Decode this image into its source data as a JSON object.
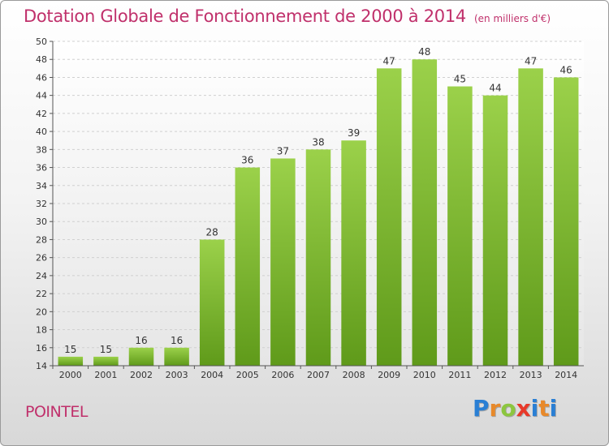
{
  "header": {
    "title": "Dotation Globale de Fonctionnement de 2000 à 2014",
    "subtitle": "(en milliers d'€)"
  },
  "footer": {
    "commune": "POINTEL",
    "logo_letters": [
      "P",
      "r",
      "o",
      "x",
      "i",
      "t",
      "i"
    ],
    "logo_colors": [
      "#2a7fd4",
      "#e8892a",
      "#8cc63f",
      "#e8392a",
      "#2a7fd4",
      "#e8892a",
      "#2a7fd4"
    ]
  },
  "colors": {
    "bar": "#8cc63f",
    "bar_dark": "#5f9a1a",
    "title": "#c0306b",
    "grid": "#d0d0d0"
  },
  "chart_data": {
    "type": "bar",
    "categories": [
      "2000",
      "2001",
      "2002",
      "2003",
      "2004",
      "2005",
      "2006",
      "2007",
      "2008",
      "2009",
      "2010",
      "2011",
      "2012",
      "2013",
      "2014"
    ],
    "values": [
      15,
      15,
      16,
      16,
      28,
      36,
      37,
      38,
      39,
      47,
      48,
      45,
      44,
      47,
      46
    ],
    "title": "Dotation Globale de Fonctionnement de 2000 à 2014",
    "subtitle": "(en milliers d'€)",
    "ylim": [
      14,
      50
    ],
    "yticks": [
      14,
      16,
      18,
      20,
      22,
      24,
      26,
      28,
      30,
      32,
      34,
      36,
      38,
      40,
      42,
      44,
      46,
      48,
      50
    ],
    "grid": true,
    "data_labels": true
  }
}
